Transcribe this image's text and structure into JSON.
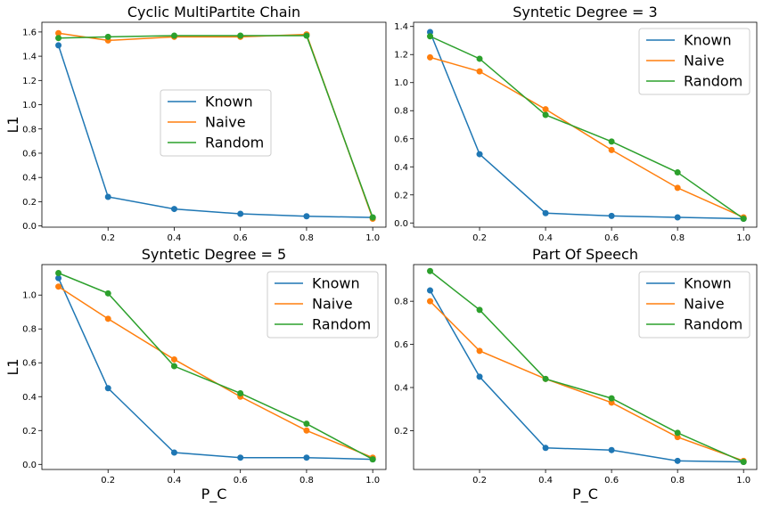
{
  "colors": {
    "Known": "#1f77b4",
    "Naive": "#ff7f0e",
    "Random": "#2ca02c"
  },
  "chart_data": [
    {
      "type": "line",
      "title": "Cyclic MultiPartite Chain",
      "xlabel": "",
      "ylabel": "L1",
      "xlim": [
        0.0,
        1.04
      ],
      "ylim": [
        -0.01,
        1.68
      ],
      "xticks": [
        "0.2",
        "0.4",
        "0.6",
        "0.8",
        "1.0"
      ],
      "yticks": [
        "0.0",
        "0.2",
        "0.4",
        "0.6",
        "0.8",
        "1.0",
        "1.2",
        "1.4",
        "1.6"
      ],
      "grid": false,
      "legend_position": "center-right",
      "x": [
        0.05,
        0.2,
        0.4,
        0.6,
        0.8,
        1.0
      ],
      "series": [
        {
          "name": "Known",
          "values": [
            1.49,
            0.24,
            0.14,
            0.1,
            0.08,
            0.07
          ]
        },
        {
          "name": "Naive",
          "values": [
            1.59,
            1.53,
            1.56,
            1.56,
            1.58,
            0.06
          ]
        },
        {
          "name": "Random",
          "values": [
            1.55,
            1.56,
            1.57,
            1.57,
            1.57,
            0.07
          ]
        }
      ]
    },
    {
      "type": "line",
      "title": "Syntetic Degree = 3",
      "xlabel": "",
      "ylabel": "",
      "xlim": [
        0.0,
        1.04
      ],
      "ylim": [
        -0.03,
        1.43
      ],
      "xticks": [
        "0.2",
        "0.4",
        "0.6",
        "0.8",
        "1.0"
      ],
      "yticks": [
        "0.0",
        "0.2",
        "0.4",
        "0.6",
        "0.8",
        "1.0",
        "1.2",
        "1.4"
      ],
      "grid": false,
      "legend_position": "top-right",
      "x": [
        0.05,
        0.2,
        0.4,
        0.6,
        0.8,
        1.0
      ],
      "series": [
        {
          "name": "Known",
          "values": [
            1.36,
            0.49,
            0.07,
            0.05,
            0.04,
            0.03
          ]
        },
        {
          "name": "Naive",
          "values": [
            1.18,
            1.08,
            0.81,
            0.52,
            0.25,
            0.04
          ]
        },
        {
          "name": "Random",
          "values": [
            1.33,
            1.17,
            0.77,
            0.58,
            0.36,
            0.03
          ]
        }
      ]
    },
    {
      "type": "line",
      "title": "Syntetic Degree = 5",
      "xlabel": "P_C",
      "ylabel": "L1",
      "xlim": [
        0.0,
        1.04
      ],
      "ylim": [
        -0.03,
        1.18
      ],
      "xticks": [
        "0.2",
        "0.4",
        "0.6",
        "0.8",
        "1.0"
      ],
      "yticks": [
        "0.0",
        "0.2",
        "0.4",
        "0.6",
        "0.8",
        "1.0"
      ],
      "grid": false,
      "legend_position": "top-right",
      "x": [
        0.05,
        0.2,
        0.4,
        0.6,
        0.8,
        1.0
      ],
      "series": [
        {
          "name": "Known",
          "values": [
            1.1,
            0.45,
            0.07,
            0.04,
            0.04,
            0.03
          ]
        },
        {
          "name": "Naive",
          "values": [
            1.05,
            0.86,
            0.62,
            0.4,
            0.2,
            0.04
          ]
        },
        {
          "name": "Random",
          "values": [
            1.13,
            1.01,
            0.58,
            0.42,
            0.24,
            0.03
          ]
        }
      ]
    },
    {
      "type": "line",
      "title": "Part Of Speech",
      "xlabel": "P_C",
      "ylabel": "",
      "xlim": [
        0.0,
        1.04
      ],
      "ylim": [
        0.02,
        0.97
      ],
      "xticks": [
        "0.2",
        "0.4",
        "0.6",
        "0.8",
        "1.0"
      ],
      "yticks": [
        "0.2",
        "0.4",
        "0.6",
        "0.8"
      ],
      "grid": false,
      "legend_position": "top-right",
      "x": [
        0.05,
        0.2,
        0.4,
        0.6,
        0.8,
        1.0
      ],
      "series": [
        {
          "name": "Known",
          "values": [
            0.85,
            0.45,
            0.12,
            0.11,
            0.06,
            0.055
          ]
        },
        {
          "name": "Naive",
          "values": [
            0.8,
            0.57,
            0.44,
            0.33,
            0.17,
            0.06
          ]
        },
        {
          "name": "Random",
          "values": [
            0.94,
            0.76,
            0.44,
            0.35,
            0.19,
            0.055
          ]
        }
      ]
    }
  ]
}
